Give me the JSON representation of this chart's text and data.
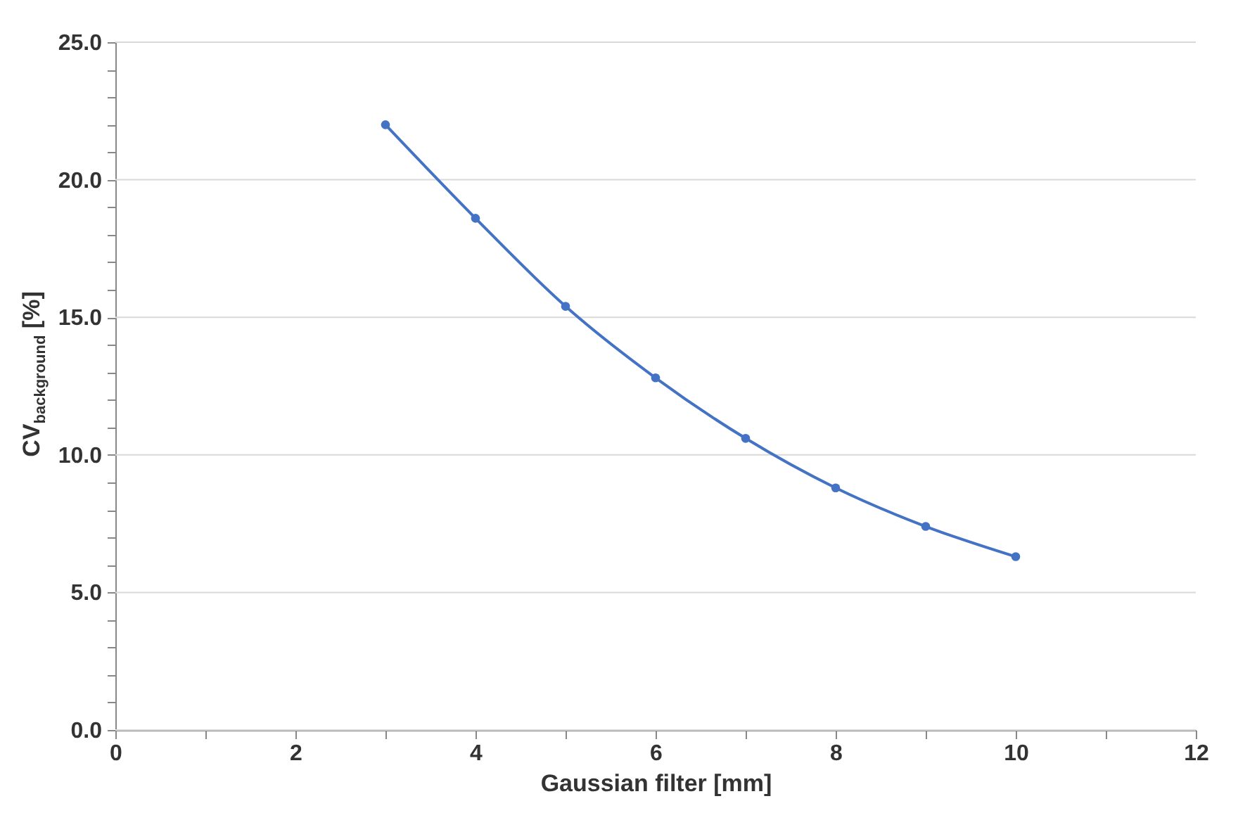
{
  "chart_data": {
    "type": "line",
    "xlabel": "Gaussian filter [mm]",
    "ylabel": "CV$_{background}$ [%]",
    "x": [
      3,
      4,
      5,
      6,
      7,
      8,
      9,
      10
    ],
    "series": [
      {
        "color": "#4472c4",
        "values": [
          22.0,
          18.6,
          15.4,
          12.8,
          10.6,
          8.8,
          7.4,
          6.3
        ]
      }
    ],
    "xlim": [
      0,
      12
    ],
    "xticks": [
      0,
      {
        "value": 1,
        "label": null
      },
      2,
      {
        "value": 3,
        "label": null
      },
      4,
      {
        "value": 5,
        "label": null
      },
      6,
      {
        "value": 7,
        "label": null
      },
      8,
      {
        "value": 9,
        "label": null
      },
      10,
      {
        "value": 11,
        "label": null
      },
      12
    ],
    "ylim": [
      0,
      25
    ],
    "yticks": [
      {
        "value": 0,
        "label": "0.0"
      },
      {
        "value": 1,
        "label": null
      },
      {
        "value": 2,
        "label": null
      },
      {
        "value": 3,
        "label": null
      },
      {
        "value": 4,
        "label": null
      },
      {
        "value": 5,
        "label": "5.0"
      },
      {
        "value": 6,
        "label": null
      },
      {
        "value": 7,
        "label": null
      },
      {
        "value": 8,
        "label": null
      },
      {
        "value": 9,
        "label": null
      },
      {
        "value": 10,
        "label": "10.0"
      },
      {
        "value": 11,
        "label": null
      },
      {
        "value": 12,
        "label": null
      },
      {
        "value": 13,
        "label": null
      },
      {
        "value": 14,
        "label": null
      },
      {
        "value": 15,
        "label": "15.0"
      },
      {
        "value": 16,
        "label": null
      },
      {
        "value": 17,
        "label": null
      },
      {
        "value": 18,
        "label": null
      },
      {
        "value": 19,
        "label": null
      },
      {
        "value": 20,
        "label": "20.0"
      },
      {
        "value": 21,
        "label": null
      },
      {
        "value": 22,
        "label": null
      },
      {
        "value": 23,
        "label": null
      },
      {
        "value": 24,
        "label": null
      },
      {
        "value": 25,
        "label": "25.0"
      }
    ],
    "grid": "y",
    "marker": "circle",
    "line_style": "solid"
  }
}
